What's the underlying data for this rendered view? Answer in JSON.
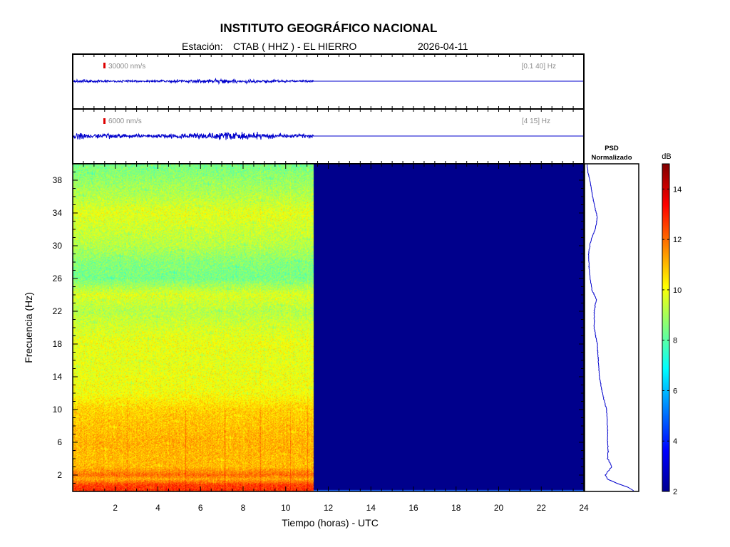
{
  "header": {
    "title": "INSTITUTO GEOGRÁFICO NACIONAL",
    "station_label": "Estación:",
    "station": "CTAB ( HHZ ) - EL HIERRO",
    "date": "2026-04-11"
  },
  "colors": {
    "trace": "#0000cc",
    "scale_marker": "#dd0000",
    "empty_spectrogram": "#00008c"
  },
  "chart_data": [
    {
      "type": "line",
      "panel": "seismogram-broadband",
      "amplitude_label": "30000 nm/s",
      "filter_label": "[0.1 40] Hz",
      "x": [
        0,
        24
      ],
      "xlim": [
        0,
        24
      ],
      "data_end_hour": 11.3,
      "noise_level": 0.18
    },
    {
      "type": "line",
      "panel": "seismogram-filtered",
      "amplitude_label": "6000 nm/s",
      "filter_label": "[4 15] Hz",
      "x": [
        0,
        24
      ],
      "xlim": [
        0,
        24
      ],
      "data_end_hour": 11.3,
      "noise_level": 0.32
    },
    {
      "type": "heatmap",
      "panel": "spectrogram",
      "xlabel": "Tiempo (horas) - UTC",
      "ylabel": "Frecuencia  (Hz)",
      "xlim": [
        0,
        24
      ],
      "ylim": [
        0,
        40
      ],
      "xticks": [
        "2",
        "4",
        "6",
        "8",
        "10",
        "12",
        "14",
        "16",
        "18",
        "20",
        "22",
        "24"
      ],
      "yticks": [
        "2",
        "6",
        "10",
        "14",
        "18",
        "22",
        "26",
        "30",
        "34",
        "38"
      ],
      "data_end_hour": 11.3,
      "colorscale": "jet",
      "db_profile": {
        "freq_hz": [
          0,
          0.8,
          1.5,
          2,
          2.5,
          3,
          4,
          6,
          8,
          10,
          12,
          14,
          16,
          18,
          20,
          22,
          24,
          26,
          28,
          30,
          32,
          34,
          36,
          38,
          40
        ],
        "db": [
          12.8,
          12.6,
          11.2,
          12.0,
          11.5,
          11.0,
          11.0,
          11.1,
          10.9,
          10.7,
          10.0,
          9.9,
          9.8,
          9.9,
          9.6,
          9.2,
          9.7,
          8.4,
          8.6,
          9.2,
          9.5,
          9.8,
          9.2,
          8.8,
          8.4
        ]
      }
    },
    {
      "type": "line",
      "panel": "psd",
      "title": "PSD",
      "subtitle": "Normalizado",
      "x_range": [
        0,
        1
      ],
      "ylim": [
        0,
        40
      ],
      "freq_hz": [
        0,
        0.5,
        1,
        1.5,
        2,
        2.5,
        3,
        3.5,
        4,
        5,
        6,
        8,
        10,
        12,
        14,
        16,
        18,
        20,
        22,
        23.5,
        24.5,
        26,
        27.5,
        29,
        30.5,
        32,
        33.5,
        34.5,
        36,
        37.5,
        39,
        40
      ],
      "value": [
        0.95,
        0.82,
        0.6,
        0.42,
        0.38,
        0.43,
        0.5,
        0.47,
        0.42,
        0.43,
        0.42,
        0.42,
        0.4,
        0.32,
        0.26,
        0.24,
        0.22,
        0.16,
        0.16,
        0.2,
        0.12,
        0.08,
        0.06,
        0.05,
        0.09,
        0.18,
        0.22,
        0.18,
        0.13,
        0.09,
        0.04,
        0.02
      ]
    },
    {
      "type": "heatmap",
      "panel": "colorbar",
      "unit_label": "dB",
      "ticks": [
        "2",
        "4",
        "6",
        "8",
        "10",
        "12",
        "14"
      ],
      "range": [
        2,
        15
      ]
    }
  ]
}
